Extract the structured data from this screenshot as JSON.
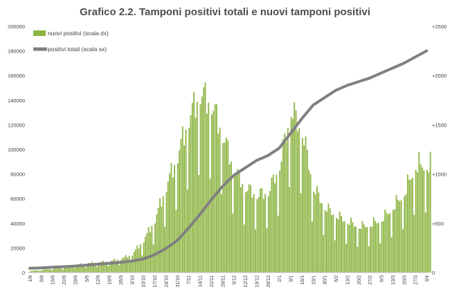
{
  "chart_data": {
    "type": "bar+line",
    "title": "Grafico 2.2. Tamponi positivi totali e nuovi tamponi positivi",
    "colors": {
      "bars": "#8cb441",
      "line": "#808080",
      "axis": "#bfbfbf",
      "text": "#404040"
    },
    "legend_position": "top-left",
    "grid": false,
    "left_axis": {
      "ylim": [
        0,
        200000
      ],
      "ticks": [
        "0",
        "20000",
        "40000",
        "60000",
        "80000",
        "100000",
        "120000",
        "140000",
        "160000",
        "180000",
        "200000"
      ]
    },
    "right_axis": {
      "ylim": [
        0,
        2500000
      ],
      "ticks": [
        "0",
        "+500",
        "+1000",
        "+1500",
        "+2000",
        "+2500"
      ]
    },
    "x_ticks": [
      "1/8",
      "8/8",
      "15/8",
      "22/8",
      "29/8",
      "5/9",
      "12/9",
      "19/9",
      "26/9",
      "3/10",
      "10/10",
      "17/10",
      "24/10",
      "31/10",
      "7/11",
      "14/11",
      "21/11",
      "28/11",
      "5/12",
      "12/12",
      "19/12",
      "26/12",
      "2/1",
      "9/1",
      "16/1",
      "23/1",
      "30/1",
      "6/2",
      "13/2",
      "20/2",
      "27/2",
      "6/3",
      "13/3",
      "20/3",
      "27/3",
      "3/4"
    ],
    "series": [
      {
        "name": "nuovi positivi (scala dx)",
        "type": "bar",
        "axis": "right",
        "weekly_anchors": [
          {
            "x": "1/8",
            "value": 15000
          },
          {
            "x": "8/8",
            "value": 27000
          },
          {
            "x": "15/8",
            "value": 40000
          },
          {
            "x": "22/8",
            "value": 55000
          },
          {
            "x": "29/8",
            "value": 75000
          },
          {
            "x": "5/9",
            "value": 90000
          },
          {
            "x": "12/9",
            "value": 100000
          },
          {
            "x": "19/9",
            "value": 110000
          },
          {
            "x": "26/9",
            "value": 135000
          },
          {
            "x": "3/10",
            "value": 180000
          },
          {
            "x": "10/10",
            "value": 320000
          },
          {
            "x": "17/10",
            "value": 520000
          },
          {
            "x": "24/10",
            "value": 850000
          },
          {
            "x": "31/10",
            "value": 1150000
          },
          {
            "x": "7/11",
            "value": 1520000
          },
          {
            "x": "14/11",
            "value": 1760000
          },
          {
            "x": "21/11",
            "value": 1650000
          },
          {
            "x": "28/11",
            "value": 1350000
          },
          {
            "x": "5/12",
            "value": 1000000
          },
          {
            "x": "12/12",
            "value": 830000
          },
          {
            "x": "19/12",
            "value": 760000
          },
          {
            "x": "26/12",
            "value": 790000
          },
          {
            "x": "2/1",
            "value": 1050000
          },
          {
            "x": "9/1",
            "value": 1600000
          },
          {
            "x": "16/1",
            "value": 1380000
          },
          {
            "x": "23/1",
            "value": 830000
          },
          {
            "x": "30/1",
            "value": 640000
          },
          {
            "x": "6/2",
            "value": 560000
          },
          {
            "x": "13/2",
            "value": 500000
          },
          {
            "x": "20/2",
            "value": 450000
          },
          {
            "x": "27/2",
            "value": 470000
          },
          {
            "x": "6/3",
            "value": 520000
          },
          {
            "x": "13/3",
            "value": 640000
          },
          {
            "x": "20/3",
            "value": 780000
          },
          {
            "x": "27/3",
            "value": 1050000
          },
          {
            "x": "3/4",
            "value": 1050000
          }
        ]
      },
      {
        "name": "positivi totali (scala sx)",
        "type": "line",
        "axis": "left",
        "weekly_values": [
          {
            "x": "1/8",
            "value": 3500
          },
          {
            "x": "8/8",
            "value": 3800
          },
          {
            "x": "15/8",
            "value": 4300
          },
          {
            "x": "22/8",
            "value": 4800
          },
          {
            "x": "29/8",
            "value": 5300
          },
          {
            "x": "5/9",
            "value": 6000
          },
          {
            "x": "12/9",
            "value": 6800
          },
          {
            "x": "19/9",
            "value": 7500
          },
          {
            "x": "26/9",
            "value": 8300
          },
          {
            "x": "3/10",
            "value": 9300
          },
          {
            "x": "10/10",
            "value": 11000
          },
          {
            "x": "17/10",
            "value": 14500
          },
          {
            "x": "24/10",
            "value": 19500
          },
          {
            "x": "31/10",
            "value": 26000
          },
          {
            "x": "7/11",
            "value": 36000
          },
          {
            "x": "14/11",
            "value": 47000
          },
          {
            "x": "21/11",
            "value": 59000
          },
          {
            "x": "28/11",
            "value": 70000
          },
          {
            "x": "5/12",
            "value": 79000
          },
          {
            "x": "12/12",
            "value": 85000
          },
          {
            "x": "19/12",
            "value": 91000
          },
          {
            "x": "26/12",
            "value": 95000
          },
          {
            "x": "2/1",
            "value": 101000
          },
          {
            "x": "9/1",
            "value": 113000
          },
          {
            "x": "16/1",
            "value": 125000
          },
          {
            "x": "23/1",
            "value": 136000
          },
          {
            "x": "30/1",
            "value": 142000
          },
          {
            "x": "6/2",
            "value": 148000
          },
          {
            "x": "13/2",
            "value": 152000
          },
          {
            "x": "20/2",
            "value": 155000
          },
          {
            "x": "27/2",
            "value": 158000
          },
          {
            "x": "6/3",
            "value": 162000
          },
          {
            "x": "13/3",
            "value": 166000
          },
          {
            "x": "20/3",
            "value": 170000
          },
          {
            "x": "27/3",
            "value": 175000
          },
          {
            "x": "3/4",
            "value": 180000
          }
        ]
      }
    ]
  }
}
